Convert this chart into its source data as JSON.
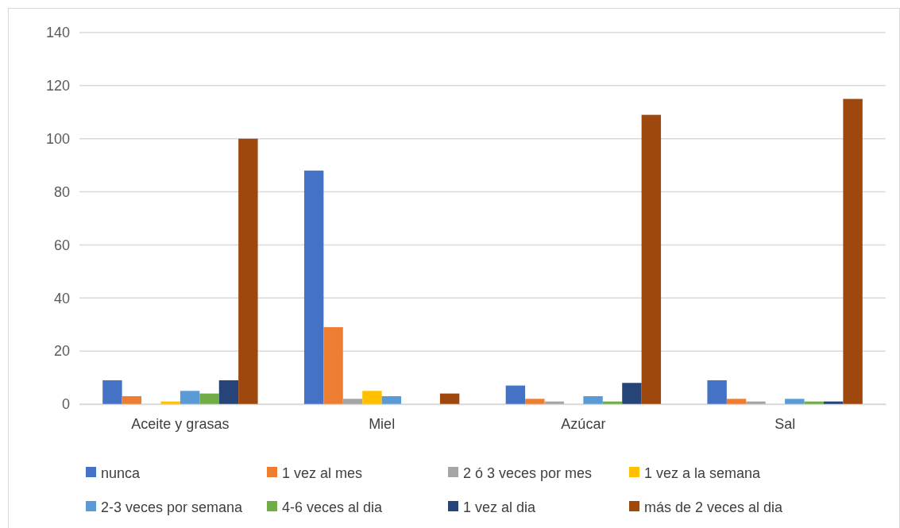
{
  "chart_data": {
    "type": "bar",
    "categories": [
      "Aceite y grasas",
      "Miel",
      "Azúcar",
      "Sal"
    ],
    "series": [
      {
        "name": "nunca",
        "color": "#4472c4",
        "values": [
          9,
          88,
          7,
          9
        ]
      },
      {
        "name": "1 vez al mes",
        "color": "#ed7d31",
        "values": [
          3,
          29,
          2,
          2
        ]
      },
      {
        "name": "2 ó 3 veces por mes",
        "color": "#a5a5a5",
        "values": [
          0,
          2,
          1,
          1
        ]
      },
      {
        "name": "1 vez a la semana",
        "color": "#ffc000",
        "values": [
          1,
          5,
          0,
          0
        ]
      },
      {
        "name": "2-3 veces por semana",
        "color": "#5b9bd5",
        "values": [
          5,
          3,
          3,
          2
        ]
      },
      {
        "name": "4-6 veces al dia",
        "color": "#70ad47",
        "values": [
          4,
          0,
          1,
          1
        ]
      },
      {
        "name": "1 vez al dia",
        "color": "#264478",
        "values": [
          9,
          0,
          8,
          1
        ]
      },
      {
        "name": "más de 2 veces al dia",
        "color": "#9e480e",
        "values": [
          100,
          4,
          109,
          115
        ]
      }
    ],
    "ylim": [
      0,
      140
    ],
    "yticks": [
      0,
      20,
      40,
      60,
      80,
      100,
      120,
      140
    ],
    "grid": "y",
    "legend": "bottom"
  }
}
